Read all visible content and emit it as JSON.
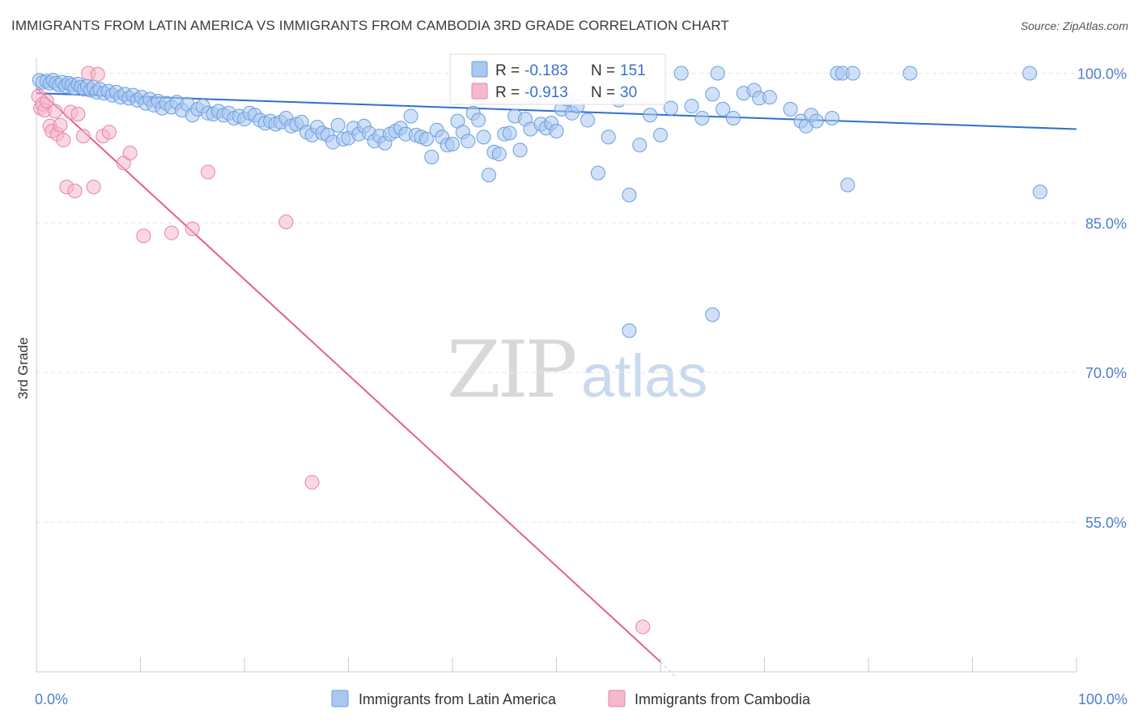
{
  "title": "IMMIGRANTS FROM LATIN AMERICA VS IMMIGRANTS FROM CAMBODIA 3RD GRADE CORRELATION CHART",
  "source": "Source: ZipAtlas.com",
  "watermark": {
    "zip": "ZIP",
    "atlas": "atlas"
  },
  "colors": {
    "blue_fill": "#a9c8f0",
    "blue_stroke": "#6a9de0",
    "blue_line": "#2f6fcf",
    "pink_fill": "#f6b8cb",
    "pink_stroke": "#e883a4",
    "pink_line": "#e2608c",
    "tick_text": "#4a7fd0",
    "grid": "#e6e6e6"
  },
  "stats": [
    {
      "r_label": "R =",
      "r_value": "-0.183",
      "n_label": "N =",
      "n_value": "151"
    },
    {
      "r_label": "R =",
      "r_value": "-0.913",
      "n_label": "N =",
      "n_value": "30"
    }
  ],
  "chart_data": {
    "type": "scatter",
    "title": "IMMIGRANTS FROM LATIN AMERICA VS IMMIGRANTS FROM CAMBODIA 3RD GRADE CORRELATION CHART",
    "xlabel": "",
    "ylabel": "3rd Grade",
    "xlim": [
      0,
      100
    ],
    "ylim": [
      40,
      101.5
    ],
    "x_tick_labels": [
      "0.0%",
      "100.0%"
    ],
    "y_ticks": [
      55,
      70,
      85,
      100
    ],
    "y_tick_labels": [
      "55.0%",
      "70.0%",
      "85.0%",
      "100.0%"
    ],
    "grid": true,
    "legend_position": "bottom",
    "series": [
      {
        "name": "Immigrants from Latin America",
        "color": "#a9c8f0",
        "trend": {
          "x": [
            0,
            100
          ],
          "y": [
            98.0,
            94.4
          ]
        },
        "points": [
          [
            0.3,
            99.3
          ],
          [
            0.6,
            99.1
          ],
          [
            1.0,
            99.2
          ],
          [
            1.3,
            99.0
          ],
          [
            1.6,
            99.3
          ],
          [
            1.9,
            99.0
          ],
          [
            2.2,
            98.8
          ],
          [
            2.5,
            99.1
          ],
          [
            2.8,
            98.7
          ],
          [
            3.1,
            99.0
          ],
          [
            3.4,
            98.8
          ],
          [
            3.7,
            98.5
          ],
          [
            4.0,
            98.9
          ],
          [
            4.3,
            98.6
          ],
          [
            4.6,
            98.4
          ],
          [
            4.9,
            98.7
          ],
          [
            5.2,
            98.3
          ],
          [
            5.5,
            98.6
          ],
          [
            5.8,
            98.1
          ],
          [
            6.1,
            98.4
          ],
          [
            6.5,
            98.0
          ],
          [
            6.9,
            98.2
          ],
          [
            7.3,
            97.8
          ],
          [
            7.7,
            98.1
          ],
          [
            8.1,
            97.6
          ],
          [
            8.5,
            97.9
          ],
          [
            8.9,
            97.5
          ],
          [
            9.3,
            97.8
          ],
          [
            9.7,
            97.3
          ],
          [
            10.1,
            97.6
          ],
          [
            10.5,
            97.0
          ],
          [
            10.9,
            97.4
          ],
          [
            11.3,
            96.8
          ],
          [
            11.7,
            97.2
          ],
          [
            12.1,
            96.5
          ],
          [
            12.5,
            97.0
          ],
          [
            13.0,
            96.6
          ],
          [
            13.5,
            97.1
          ],
          [
            14.0,
            96.3
          ],
          [
            14.5,
            96.9
          ],
          [
            15.0,
            95.8
          ],
          [
            15.5,
            96.4
          ],
          [
            16.0,
            96.7
          ],
          [
            16.5,
            96.0
          ],
          [
            17.0,
            95.9
          ],
          [
            17.5,
            96.2
          ],
          [
            18.0,
            95.8
          ],
          [
            18.5,
            96.0
          ],
          [
            19.0,
            95.5
          ],
          [
            19.5,
            95.7
          ],
          [
            20.0,
            95.4
          ],
          [
            20.5,
            96.0
          ],
          [
            21.0,
            95.8
          ],
          [
            21.5,
            95.3
          ],
          [
            22.0,
            95.0
          ],
          [
            22.5,
            95.2
          ],
          [
            23.0,
            94.9
          ],
          [
            23.5,
            95.1
          ],
          [
            24.0,
            95.5
          ],
          [
            24.5,
            94.7
          ],
          [
            25.0,
            94.9
          ],
          [
            25.5,
            95.1
          ],
          [
            26.0,
            94.1
          ],
          [
            26.5,
            93.8
          ],
          [
            27.0,
            94.6
          ],
          [
            27.5,
            94.0
          ],
          [
            28.0,
            93.8
          ],
          [
            28.5,
            93.1
          ],
          [
            29.0,
            94.8
          ],
          [
            29.5,
            93.4
          ],
          [
            30.0,
            93.5
          ],
          [
            30.5,
            94.5
          ],
          [
            31.0,
            93.9
          ],
          [
            31.5,
            94.7
          ],
          [
            32.0,
            94.0
          ],
          [
            32.5,
            93.2
          ],
          [
            33.0,
            93.7
          ],
          [
            33.5,
            93.0
          ],
          [
            34.0,
            93.9
          ],
          [
            34.5,
            94.2
          ],
          [
            35.0,
            94.5
          ],
          [
            35.5,
            93.9
          ],
          [
            36.0,
            95.7
          ],
          [
            36.5,
            93.8
          ],
          [
            37.0,
            93.6
          ],
          [
            37.5,
            93.4
          ],
          [
            38.0,
            91.6
          ],
          [
            38.5,
            94.3
          ],
          [
            39.0,
            93.6
          ],
          [
            39.5,
            92.8
          ],
          [
            40.0,
            92.9
          ],
          [
            40.5,
            95.2
          ],
          [
            41.0,
            94.1
          ],
          [
            41.5,
            93.2
          ],
          [
            42.0,
            96.0
          ],
          [
            42.5,
            95.3
          ],
          [
            43.0,
            93.6
          ],
          [
            43.5,
            89.8
          ],
          [
            44.0,
            92.1
          ],
          [
            44.5,
            91.9
          ],
          [
            45.0,
            93.9
          ],
          [
            45.5,
            94.0
          ],
          [
            46.0,
            95.7
          ],
          [
            46.5,
            92.3
          ],
          [
            47.0,
            95.4
          ],
          [
            47.5,
            94.4
          ],
          [
            48.0,
            97.6
          ],
          [
            48.5,
            94.9
          ],
          [
            49.0,
            94.5
          ],
          [
            49.5,
            95.0
          ],
          [
            50.0,
            94.2
          ],
          [
            50.5,
            96.4
          ],
          [
            51.0,
            97.4
          ],
          [
            51.5,
            96.0
          ],
          [
            52.0,
            96.7
          ],
          [
            53.0,
            95.3
          ],
          [
            54.0,
            90.0
          ],
          [
            55.0,
            93.6
          ],
          [
            56.0,
            97.3
          ],
          [
            57.0,
            87.8
          ],
          [
            58.0,
            92.8
          ],
          [
            59.0,
            95.8
          ],
          [
            60.0,
            93.8
          ],
          [
            61.0,
            96.5
          ],
          [
            62.0,
            100.0
          ],
          [
            63.0,
            96.7
          ],
          [
            64.0,
            95.5
          ],
          [
            65.0,
            97.9
          ],
          [
            65.5,
            100.0
          ],
          [
            66.0,
            96.4
          ],
          [
            67.0,
            95.5
          ],
          [
            68.0,
            98.0
          ],
          [
            69.0,
            98.3
          ],
          [
            69.5,
            97.5
          ],
          [
            70.5,
            97.6
          ],
          [
            72.5,
            96.4
          ],
          [
            73.5,
            95.2
          ],
          [
            74.0,
            94.7
          ],
          [
            74.5,
            95.8
          ],
          [
            75.0,
            95.2
          ],
          [
            76.5,
            95.5
          ],
          [
            77.0,
            100.0
          ],
          [
            77.5,
            100.0
          ],
          [
            78.5,
            100.0
          ],
          [
            78.0,
            88.8
          ],
          [
            84.0,
            100.0
          ],
          [
            95.5,
            100.0
          ],
          [
            96.5,
            88.1
          ],
          [
            57.0,
            74.2
          ],
          [
            65.0,
            75.8
          ]
        ]
      },
      {
        "name": "Immigrants from Cambodia",
        "color": "#f6b8cb",
        "trend": {
          "x": [
            0,
            60
          ],
          "y": [
            98.5,
            41.0
          ]
        },
        "points": [
          [
            0.2,
            97.7
          ],
          [
            0.4,
            96.5
          ],
          [
            0.6,
            96.9
          ],
          [
            0.8,
            96.3
          ],
          [
            1.0,
            97.2
          ],
          [
            1.3,
            94.7
          ],
          [
            1.5,
            94.2
          ],
          [
            1.8,
            96.2
          ],
          [
            2.0,
            93.9
          ],
          [
            2.3,
            94.8
          ],
          [
            2.6,
            93.3
          ],
          [
            2.9,
            88.6
          ],
          [
            3.3,
            96.1
          ],
          [
            3.7,
            88.2
          ],
          [
            4.0,
            95.9
          ],
          [
            4.5,
            93.7
          ],
          [
            5.0,
            100.0
          ],
          [
            5.5,
            88.6
          ],
          [
            5.9,
            99.9
          ],
          [
            6.4,
            93.7
          ],
          [
            7.0,
            94.1
          ],
          [
            8.4,
            91.0
          ],
          [
            9.0,
            92.0
          ],
          [
            10.3,
            83.7
          ],
          [
            13.0,
            84.0
          ],
          [
            15.0,
            84.4
          ],
          [
            16.5,
            90.1
          ],
          [
            24.0,
            85.1
          ],
          [
            26.5,
            59.0
          ],
          [
            58.3,
            44.5
          ]
        ]
      }
    ]
  },
  "legend": [
    {
      "label": "Immigrants from Latin America",
      "color": "#a9c8f0"
    },
    {
      "label": "Immigrants from Cambodia",
      "color": "#f6b8cb"
    }
  ]
}
